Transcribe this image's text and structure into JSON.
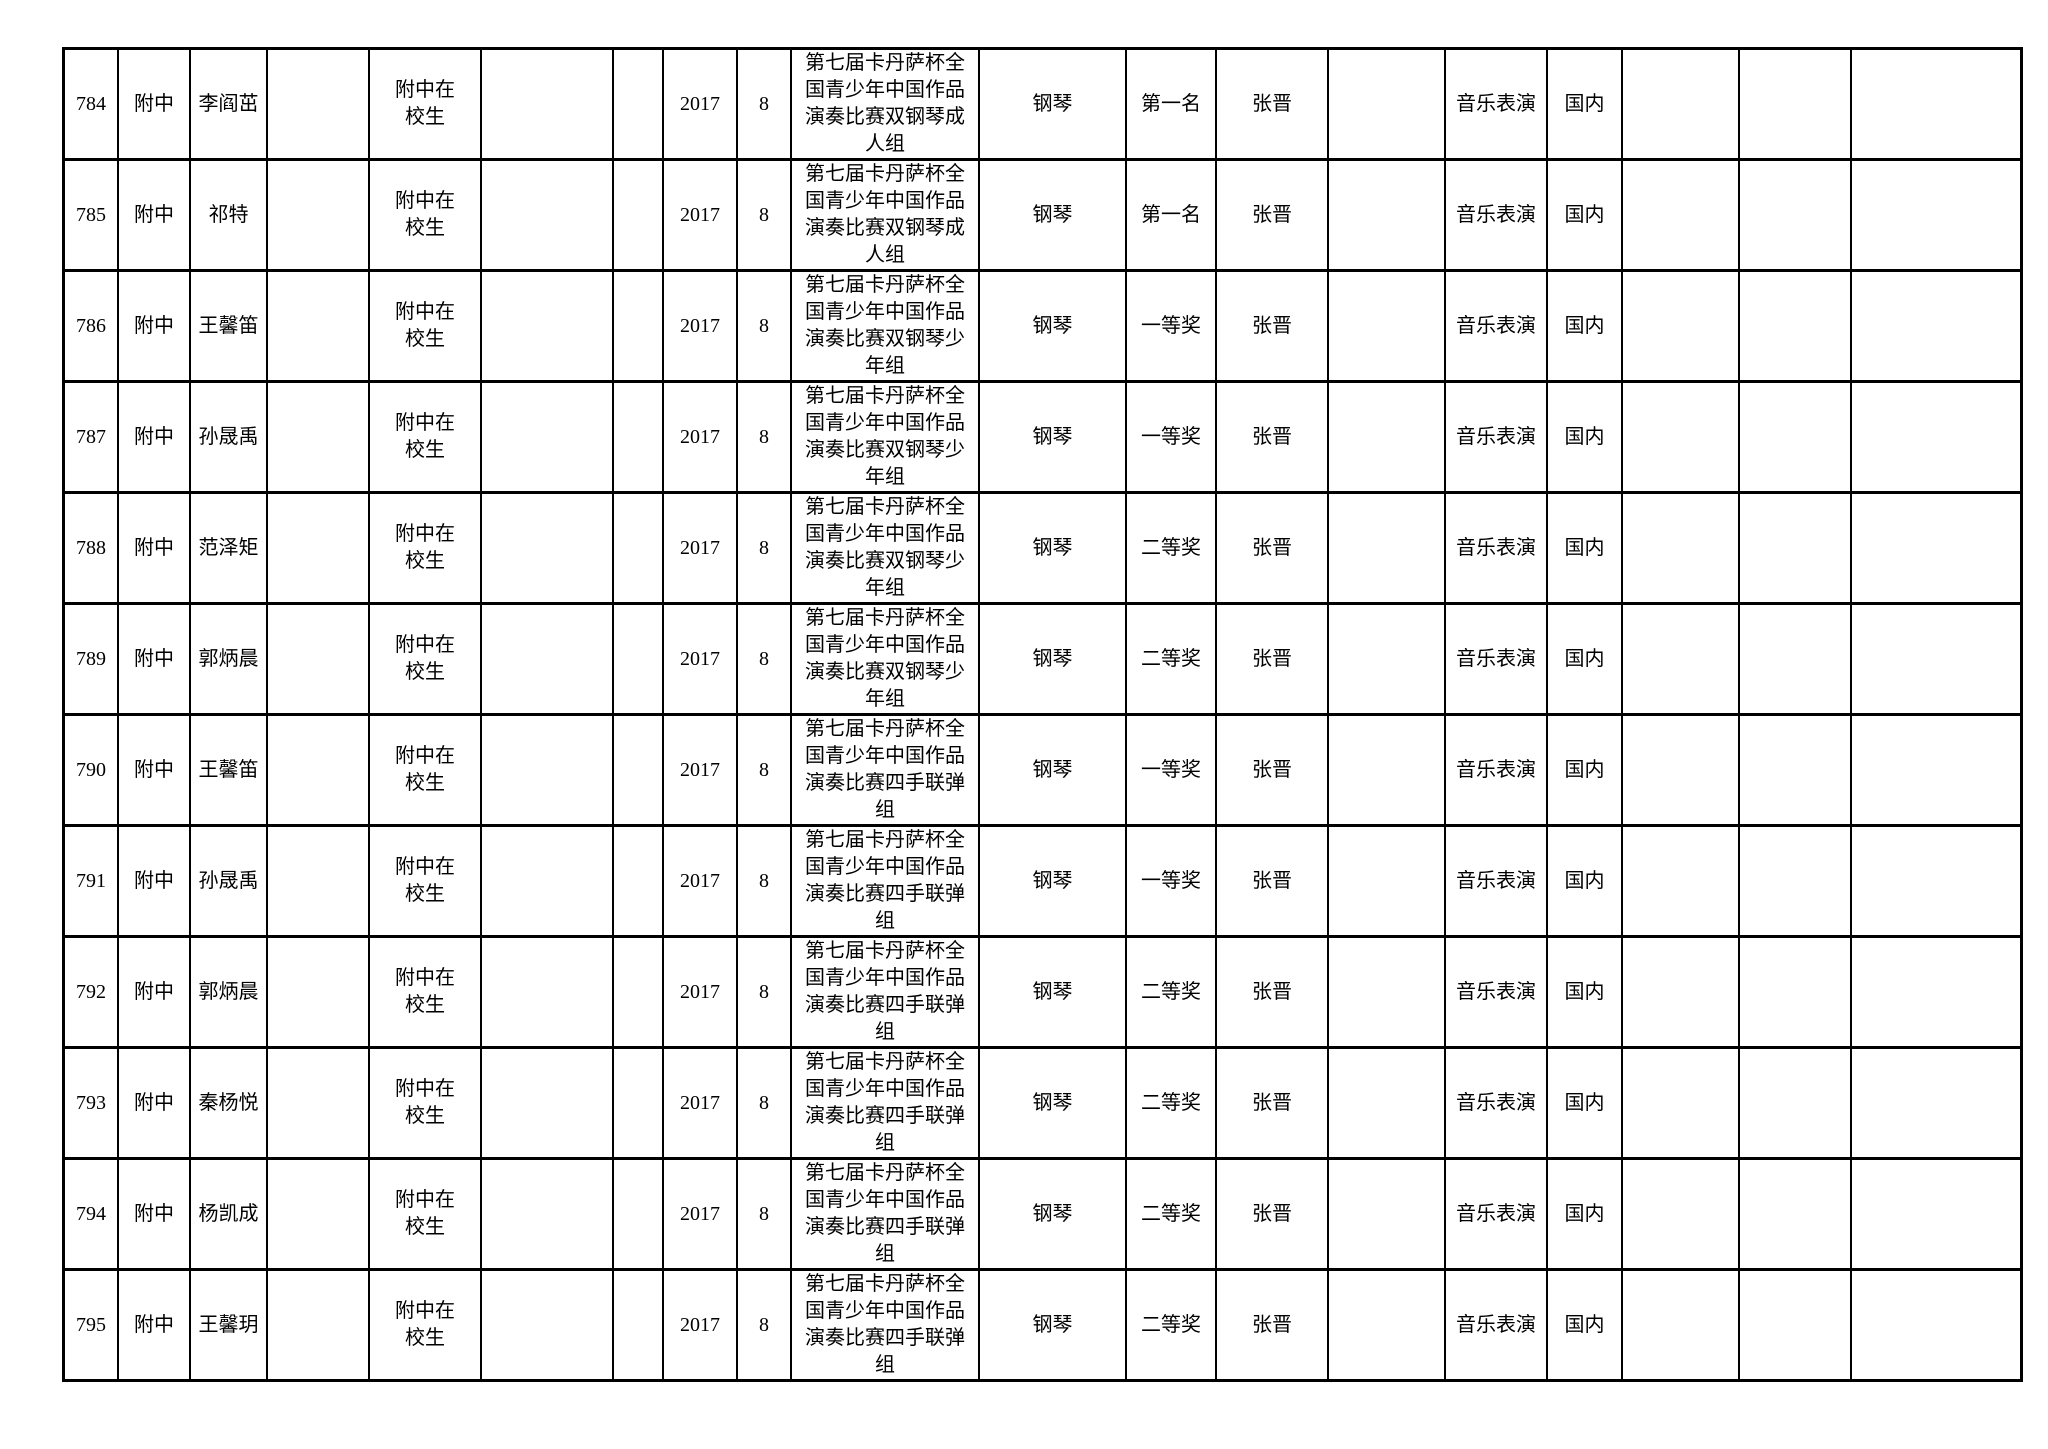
{
  "page": {
    "background_color": "#ffffff",
    "text_color": "#000000",
    "table_border_color": "#000000"
  },
  "table": {
    "rows": [
      {
        "serial": "784",
        "school": "附中",
        "name": "李阎茁",
        "status": "附中在校生",
        "year": "2017",
        "month": "8",
        "competition": "第七届卡丹萨杯全国青少年中国作品演奏比赛双钢琴成人组",
        "instrument": "钢琴",
        "award": "第一名",
        "teacher": "张晋",
        "major": "音乐表演",
        "scope": "国内"
      },
      {
        "serial": "785",
        "school": "附中",
        "name": "祁特",
        "status": "附中在校生",
        "year": "2017",
        "month": "8",
        "competition": "第七届卡丹萨杯全国青少年中国作品演奏比赛双钢琴成人组",
        "instrument": "钢琴",
        "award": "第一名",
        "teacher": "张晋",
        "major": "音乐表演",
        "scope": "国内"
      },
      {
        "serial": "786",
        "school": "附中",
        "name": "王馨笛",
        "status": "附中在校生",
        "year": "2017",
        "month": "8",
        "competition": "第七届卡丹萨杯全国青少年中国作品演奏比赛双钢琴少年组",
        "instrument": "钢琴",
        "award": "一等奖",
        "teacher": "张晋",
        "major": "音乐表演",
        "scope": "国内"
      },
      {
        "serial": "787",
        "school": "附中",
        "name": "孙晟禹",
        "status": "附中在校生",
        "year": "2017",
        "month": "8",
        "competition": "第七届卡丹萨杯全国青少年中国作品演奏比赛双钢琴少年组",
        "instrument": "钢琴",
        "award": "一等奖",
        "teacher": "张晋",
        "major": "音乐表演",
        "scope": "国内"
      },
      {
        "serial": "788",
        "school": "附中",
        "name": "范泽矩",
        "status": "附中在校生",
        "year": "2017",
        "month": "8",
        "competition": "第七届卡丹萨杯全国青少年中国作品演奏比赛双钢琴少年组",
        "instrument": "钢琴",
        "award": "二等奖",
        "teacher": "张晋",
        "major": "音乐表演",
        "scope": "国内"
      },
      {
        "serial": "789",
        "school": "附中",
        "name": "郭炳晨",
        "status": "附中在校生",
        "year": "2017",
        "month": "8",
        "competition": "第七届卡丹萨杯全国青少年中国作品演奏比赛双钢琴少年组",
        "instrument": "钢琴",
        "award": "二等奖",
        "teacher": "张晋",
        "major": "音乐表演",
        "scope": "国内"
      },
      {
        "serial": "790",
        "school": "附中",
        "name": "王馨笛",
        "status": "附中在校生",
        "year": "2017",
        "month": "8",
        "competition": "第七届卡丹萨杯全国青少年中国作品演奏比赛四手联弹组",
        "instrument": "钢琴",
        "award": "一等奖",
        "teacher": "张晋",
        "major": "音乐表演",
        "scope": "国内"
      },
      {
        "serial": "791",
        "school": "附中",
        "name": "孙晟禹",
        "status": "附中在校生",
        "year": "2017",
        "month": "8",
        "competition": "第七届卡丹萨杯全国青少年中国作品演奏比赛四手联弹组",
        "instrument": "钢琴",
        "award": "一等奖",
        "teacher": "张晋",
        "major": "音乐表演",
        "scope": "国内"
      },
      {
        "serial": "792",
        "school": "附中",
        "name": "郭炳晨",
        "status": "附中在校生",
        "year": "2017",
        "month": "8",
        "competition": "第七届卡丹萨杯全国青少年中国作品演奏比赛四手联弹组",
        "instrument": "钢琴",
        "award": "二等奖",
        "teacher": "张晋",
        "major": "音乐表演",
        "scope": "国内"
      },
      {
        "serial": "793",
        "school": "附中",
        "name": "秦杨悦",
        "status": "附中在校生",
        "year": "2017",
        "month": "8",
        "competition": "第七届卡丹萨杯全国青少年中国作品演奏比赛四手联弹组",
        "instrument": "钢琴",
        "award": "二等奖",
        "teacher": "张晋",
        "major": "音乐表演",
        "scope": "国内"
      },
      {
        "serial": "794",
        "school": "附中",
        "name": "杨凯成",
        "status": "附中在校生",
        "year": "2017",
        "month": "8",
        "competition": "第七届卡丹萨杯全国青少年中国作品演奏比赛四手联弹组",
        "instrument": "钢琴",
        "award": "二等奖",
        "teacher": "张晋",
        "major": "音乐表演",
        "scope": "国内"
      },
      {
        "serial": "795",
        "school": "附中",
        "name": "王馨玥",
        "status": "附中在校生",
        "year": "2017",
        "month": "8",
        "competition": "第七届卡丹萨杯全国青少年中国作品演奏比赛四手联弹组",
        "instrument": "钢琴",
        "award": "二等奖",
        "teacher": "张晋",
        "major": "音乐表演",
        "scope": "国内"
      }
    ]
  }
}
